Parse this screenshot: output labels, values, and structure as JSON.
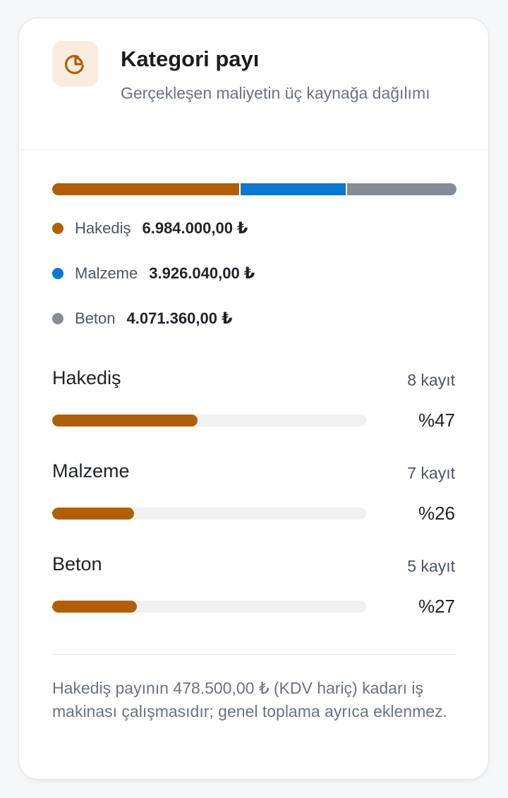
{
  "header": {
    "title": "Kategori payı",
    "subtitle": "Gerçekleşen maliyetin üç kaynağa dağılımı",
    "icon": "pie-chart-icon"
  },
  "colors": {
    "accent": "#b15f07",
    "hakedis": "#b15f07",
    "malzeme": "#0a78d1",
    "beton": "#868c96",
    "icon_tile_bg": "#f9ecdf",
    "track": "#f0f1f3"
  },
  "stacked_bar": {
    "segments": [
      {
        "name": "Hakediş",
        "share": 0.466,
        "color": "#b15f07"
      },
      {
        "name": "Malzeme",
        "share": 0.262,
        "color": "#0a78d1"
      },
      {
        "name": "Beton",
        "share": 0.272,
        "color": "#868c96"
      }
    ]
  },
  "legend": [
    {
      "label": "Hakediş",
      "value": "6.984.000,00 ₺",
      "color": "#b15f07"
    },
    {
      "label": "Malzeme",
      "value": "3.926.040,00 ₺",
      "color": "#0a78d1"
    },
    {
      "label": "Beton",
      "value": "4.071.360,00 ₺",
      "color": "#868c96"
    }
  ],
  "categories": [
    {
      "name": "Hakediş",
      "count": "8 kayıt",
      "percent_label": "%47",
      "fill_fraction": 0.464
    },
    {
      "name": "Malzeme",
      "count": "7 kayıt",
      "percent_label": "%26",
      "fill_fraction": 0.261
    },
    {
      "name": "Beton",
      "count": "5 kayıt",
      "percent_label": "%27",
      "fill_fraction": 0.27
    }
  ],
  "footnote": "Hakediş payının 478.500,00 ₺ (KDV hariç) kadarı iş makinası çalışmasıdır; genel toplama ayrıca eklenmez."
}
